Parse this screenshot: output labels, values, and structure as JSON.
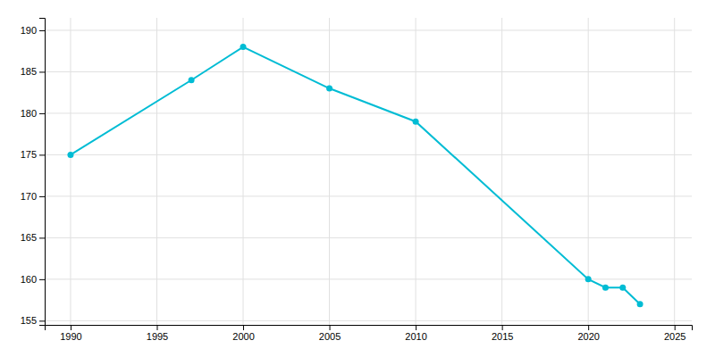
{
  "chart_data": {
    "type": "line",
    "x": [
      1990,
      1997,
      2000,
      2005,
      2010,
      2020,
      2021,
      2022,
      2023
    ],
    "values": [
      175,
      184,
      188,
      183,
      179,
      160,
      159,
      159,
      157
    ],
    "color": "#00bcd4",
    "marker": "circle",
    "xlim": [
      1988.5,
      2026
    ],
    "ylim": [
      154.5,
      191.5
    ],
    "xticks": [
      1990,
      1995,
      2000,
      2005,
      2010,
      2015,
      2020,
      2025
    ],
    "yticks": [
      155,
      160,
      165,
      170,
      175,
      180,
      185,
      190
    ],
    "grid": true
  }
}
